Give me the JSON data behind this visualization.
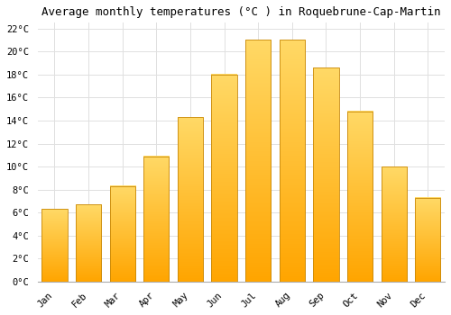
{
  "months": [
    "Jan",
    "Feb",
    "Mar",
    "Apr",
    "May",
    "Jun",
    "Jul",
    "Aug",
    "Sep",
    "Oct",
    "Nov",
    "Dec"
  ],
  "temperatures": [
    6.3,
    6.7,
    8.3,
    10.9,
    14.3,
    18.0,
    21.0,
    21.0,
    18.6,
    14.8,
    10.0,
    7.3
  ],
  "bar_color_top": "#FFD966",
  "bar_color_bottom": "#FFA500",
  "bar_edge_color": "#C8880A",
  "title": "Average monthly temperatures (°C ) in Roquebrune-Cap-Martin",
  "ylim": [
    0,
    22.5
  ],
  "ytick_max": 22,
  "ytick_step": 2,
  "background_color": "#ffffff",
  "grid_color": "#e0e0e0",
  "title_fontsize": 9,
  "tick_fontsize": 7.5,
  "font_family": "monospace",
  "bar_width": 0.75
}
